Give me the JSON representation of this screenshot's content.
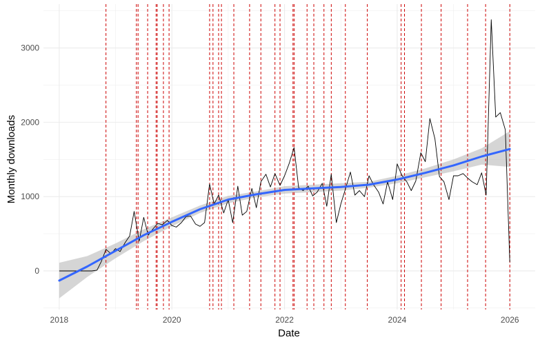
{
  "chart_data": {
    "type": "line",
    "xlabel": "Date",
    "ylabel": "Monthly downloads",
    "x_ticks": [
      2018,
      2020,
      2022,
      2024,
      2026
    ],
    "y_ticks": [
      0,
      1000,
      2000,
      3000
    ],
    "xlim": [
      2017.72,
      2026.45
    ],
    "ylim": [
      -520,
      3590
    ],
    "grid": true,
    "colors": {
      "downloads_line": "#000000",
      "trend_line": "#3366FF",
      "confidence_band": "#b3b3b3",
      "release_lines": "#cc0000",
      "grid": "#ebebeb"
    },
    "series": [
      {
        "type": "line",
        "points": [
          [
            2018.0,
            0
          ],
          [
            2018.08,
            0
          ],
          [
            2018.17,
            0
          ],
          [
            2018.25,
            0
          ],
          [
            2018.33,
            0
          ],
          [
            2018.42,
            0
          ],
          [
            2018.5,
            0
          ],
          [
            2018.58,
            0
          ],
          [
            2018.67,
            10
          ],
          [
            2018.75,
            130
          ],
          [
            2018.83,
            290
          ],
          [
            2018.92,
            230
          ],
          [
            2019.0,
            300
          ],
          [
            2019.08,
            260
          ],
          [
            2019.17,
            380
          ],
          [
            2019.25,
            470
          ],
          [
            2019.33,
            800
          ],
          [
            2019.42,
            400
          ],
          [
            2019.5,
            720
          ],
          [
            2019.58,
            480
          ],
          [
            2019.67,
            570
          ],
          [
            2019.75,
            640
          ],
          [
            2019.83,
            620
          ],
          [
            2019.92,
            680
          ],
          [
            2020.0,
            610
          ],
          [
            2020.08,
            590
          ],
          [
            2020.17,
            650
          ],
          [
            2020.25,
            730
          ],
          [
            2020.33,
            740
          ],
          [
            2020.42,
            630
          ],
          [
            2020.5,
            600
          ],
          [
            2020.58,
            650
          ],
          [
            2020.67,
            1170
          ],
          [
            2020.75,
            900
          ],
          [
            2020.83,
            1020
          ],
          [
            2020.92,
            780
          ],
          [
            2021.0,
            960
          ],
          [
            2021.08,
            650
          ],
          [
            2021.17,
            1140
          ],
          [
            2021.25,
            750
          ],
          [
            2021.33,
            800
          ],
          [
            2021.42,
            1110
          ],
          [
            2021.5,
            850
          ],
          [
            2021.58,
            1200
          ],
          [
            2021.67,
            1300
          ],
          [
            2021.75,
            1130
          ],
          [
            2021.83,
            1310
          ],
          [
            2021.92,
            1150
          ],
          [
            2022.0,
            1280
          ],
          [
            2022.08,
            1440
          ],
          [
            2022.17,
            1660
          ],
          [
            2022.25,
            1120
          ],
          [
            2022.33,
            1080
          ],
          [
            2022.42,
            1140
          ],
          [
            2022.5,
            1010
          ],
          [
            2022.58,
            1060
          ],
          [
            2022.67,
            1180
          ],
          [
            2022.75,
            870
          ],
          [
            2022.83,
            1300
          ],
          [
            2022.92,
            650
          ],
          [
            2023.0,
            900
          ],
          [
            2023.08,
            1100
          ],
          [
            2023.17,
            1330
          ],
          [
            2023.25,
            1020
          ],
          [
            2023.33,
            1080
          ],
          [
            2023.42,
            1000
          ],
          [
            2023.5,
            1280
          ],
          [
            2023.58,
            1160
          ],
          [
            2023.67,
            1060
          ],
          [
            2023.75,
            900
          ],
          [
            2023.83,
            1200
          ],
          [
            2023.92,
            960
          ],
          [
            2024.0,
            1440
          ],
          [
            2024.08,
            1290
          ],
          [
            2024.17,
            1200
          ],
          [
            2024.25,
            1080
          ],
          [
            2024.33,
            1210
          ],
          [
            2024.42,
            1590
          ],
          [
            2024.5,
            1470
          ],
          [
            2024.58,
            2050
          ],
          [
            2024.67,
            1780
          ],
          [
            2024.75,
            1270
          ],
          [
            2024.83,
            1200
          ],
          [
            2024.92,
            960
          ],
          [
            2025.0,
            1280
          ],
          [
            2025.08,
            1280
          ],
          [
            2025.17,
            1310
          ],
          [
            2025.25,
            1250
          ],
          [
            2025.33,
            1200
          ],
          [
            2025.42,
            1160
          ],
          [
            2025.5,
            1320
          ],
          [
            2025.58,
            1020
          ],
          [
            2025.67,
            3380
          ],
          [
            2025.75,
            2070
          ],
          [
            2025.83,
            2130
          ],
          [
            2025.92,
            1900
          ],
          [
            2026.0,
            120
          ]
        ]
      },
      {
        "type": "smooth",
        "x": [
          2018.0,
          2018.5,
          2019.0,
          2019.5,
          2020.0,
          2020.5,
          2021.0,
          2021.5,
          2022.0,
          2022.5,
          2023.0,
          2023.5,
          2024.0,
          2024.5,
          2025.0,
          2025.5,
          2026.0
        ],
        "y": [
          -130,
          60,
          270,
          480,
          660,
          830,
          960,
          1030,
          1090,
          1110,
          1130,
          1160,
          1230,
          1320,
          1420,
          1540,
          1640
        ],
        "ci_lower": [
          -370,
          -80,
          170,
          400,
          600,
          780,
          910,
          990,
          1040,
          1060,
          1080,
          1120,
          1180,
          1260,
          1340,
          1430,
          1400
        ],
        "ci_upper": [
          110,
          200,
          370,
          560,
          720,
          880,
          1010,
          1070,
          1140,
          1160,
          1180,
          1200,
          1280,
          1380,
          1500,
          1650,
          1880
        ]
      }
    ],
    "release_dates": [
      2018.83,
      2019.37,
      2019.4,
      2019.57,
      2019.72,
      2019.74,
      2019.85,
      2019.95,
      2020.67,
      2020.73,
      2020.83,
      2020.88,
      2021.1,
      2021.38,
      2021.58,
      2021.83,
      2021.92,
      2022.15,
      2022.17,
      2022.4,
      2022.52,
      2022.7,
      2022.83,
      2023.08,
      2023.47,
      2024.07,
      2024.13,
      2024.43,
      2024.78,
      2025.25,
      2025.57,
      2026.0
    ]
  }
}
